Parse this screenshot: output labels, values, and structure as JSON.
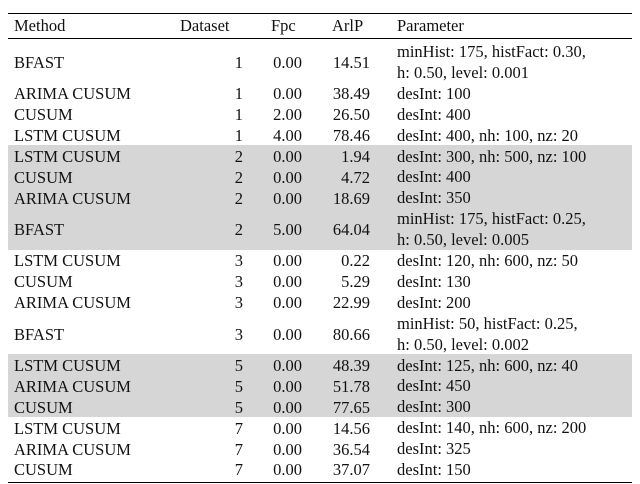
{
  "table": {
    "header": [
      "Method",
      "Dataset",
      "Fpc",
      "ArlP",
      "Parameter"
    ],
    "rows": [
      [
        "BFAST",
        "1",
        "0.00",
        "14.51",
        [
          "minHist: 175, histFact: 0.30,",
          "h: 0.50, level: 0.001"
        ]
      ],
      [
        "ARIMA CUSUM",
        "1",
        "0.00",
        "38.49",
        [
          "desInt: 100"
        ]
      ],
      [
        "CUSUM",
        "1",
        "2.00",
        "26.50",
        [
          "desInt: 400"
        ]
      ],
      [
        "LSTM CUSUM",
        "1",
        "4.00",
        "78.46",
        [
          "desInt: 400, nh: 100, nz: 20"
        ]
      ],
      [
        "LSTM CUSUM",
        "2",
        "0.00",
        "1.94",
        [
          "desInt: 300, nh: 500, nz: 100"
        ]
      ],
      [
        "CUSUM",
        "2",
        "0.00",
        "4.72",
        [
          "desInt: 400"
        ]
      ],
      [
        "ARIMA CUSUM",
        "2",
        "0.00",
        "18.69",
        [
          "desInt: 350"
        ]
      ],
      [
        "BFAST",
        "2",
        "5.00",
        "64.04",
        [
          "minHist: 175, histFact: 0.25,",
          "h: 0.50, level: 0.005"
        ]
      ],
      [
        "LSTM CUSUM",
        "3",
        "0.00",
        "0.22",
        [
          "desInt: 120, nh: 600, nz: 50"
        ]
      ],
      [
        "CUSUM",
        "3",
        "0.00",
        "5.29",
        [
          "desInt: 130"
        ]
      ],
      [
        "ARIMA CUSUM",
        "3",
        "0.00",
        "22.99",
        [
          "desInt: 200"
        ]
      ],
      [
        "BFAST",
        "3",
        "0.00",
        "80.66",
        [
          "minHist: 50, histFact: 0.25,",
          "h: 0.50, level: 0.002"
        ]
      ],
      [
        "LSTM CUSUM",
        "5",
        "0.00",
        "48.39",
        [
          "desInt: 125, nh: 600, nz: 40"
        ]
      ],
      [
        "ARIMA CUSUM",
        "5",
        "0.00",
        "51.78",
        [
          "desInt: 450"
        ]
      ],
      [
        "CUSUM",
        "5",
        "0.00",
        "77.65",
        [
          "desInt: 300"
        ]
      ],
      [
        "LSTM CUSUM",
        "7",
        "0.00",
        "14.56",
        [
          "desInt: 140, nh: 600, nz: 200"
        ]
      ],
      [
        "ARIMA CUSUM",
        "7",
        "0.00",
        "36.54",
        [
          "desInt: 325"
        ]
      ],
      [
        "CUSUM",
        "7",
        "0.00",
        "37.07",
        [
          "desInt: 150"
        ]
      ]
    ]
  }
}
